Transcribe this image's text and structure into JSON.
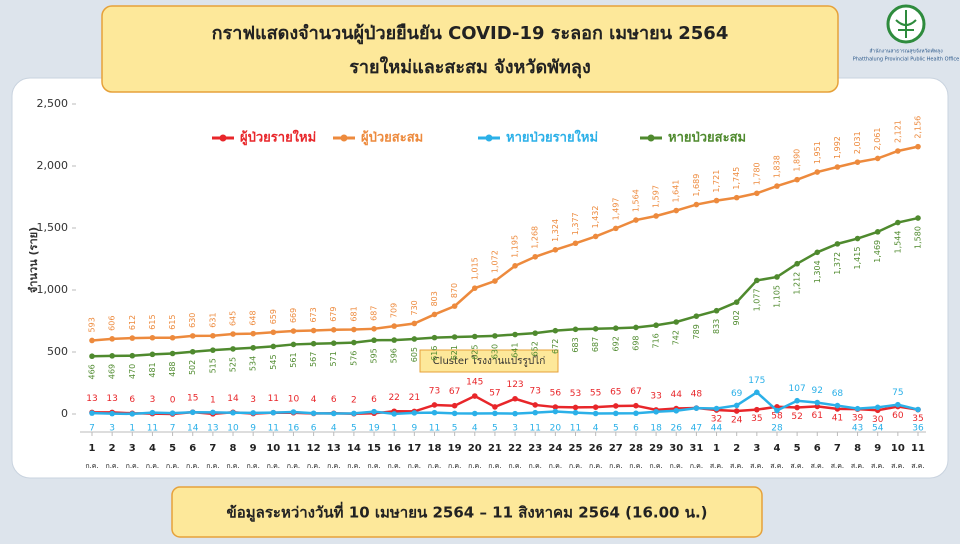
{
  "header": {
    "logo_text": "สำนักงานสาธารณสุขจังหวัดพัทลุง",
    "logo_subtext": "Phatthalung Provincial Public Health Office"
  },
  "footer": "ข้อมูลระหว่างวันที่ 10 เมษายน 2564 – 11 สิงหาคม 2564 (16.00 น.)",
  "chart_data": {
    "type": "line",
    "title": "กราฟแสดงจำนวนผู้ป่วยยืนยัน COVID-19 ระลอก เมษายน 2564",
    "subtitle": "รายใหม่และสะสม จังหวัดพัทลุง",
    "y_label": "จำนวน (ราย)",
    "annotation": "Cluster โรงงานแปรรูปไก่",
    "categories": [
      "1",
      "2",
      "3",
      "4",
      "5",
      "6",
      "7",
      "8",
      "9",
      "10",
      "11",
      "12",
      "13",
      "14",
      "15",
      "16",
      "17",
      "18",
      "19",
      "20",
      "21",
      "22",
      "23",
      "24",
      "25",
      "26",
      "27",
      "28",
      "29",
      "30",
      "31",
      "1",
      "2",
      "3",
      "4",
      "5",
      "6",
      "7",
      "8",
      "9",
      "10",
      "11"
    ],
    "x_sublabels": [
      "ก.ค.",
      "ก.ค.",
      "ก.ค.",
      "ก.ค.",
      "ก.ค.",
      "ก.ค.",
      "ก.ค.",
      "ก.ค.",
      "ก.ค.",
      "ก.ค.",
      "ก.ค.",
      "ก.ค.",
      "ก.ค.",
      "ก.ค.",
      "ก.ค.",
      "ก.ค.",
      "ก.ค.",
      "ก.ค.",
      "ก.ค.",
      "ก.ค.",
      "ก.ค.",
      "ก.ค.",
      "ก.ค.",
      "ก.ค.",
      "ก.ค.",
      "ก.ค.",
      "ก.ค.",
      "ก.ค.",
      "ก.ค.",
      "ก.ค.",
      "ก.ค.",
      "ส.ค.",
      "ส.ค.",
      "ส.ค.",
      "ส.ค.",
      "ส.ค.",
      "ส.ค.",
      "ส.ค.",
      "ส.ค.",
      "ส.ค.",
      "ส.ค.",
      "ส.ค."
    ],
    "ylim": [
      0,
      2500
    ],
    "yticks": [
      0,
      500,
      {
        "value": 1000,
        "label": "1,000"
      },
      {
        "value": 1500,
        "label": "1,500"
      },
      {
        "value": 2000,
        "label": "2,000"
      },
      {
        "value": 2500,
        "label": "2,500"
      }
    ],
    "series": [
      {
        "name": "ผู้ป่วยรายใหม่",
        "color": "#e8262a",
        "values": [
          13,
          13,
          6,
          3,
          0,
          15,
          1,
          14,
          3,
          11,
          10,
          4,
          6,
          2,
          6,
          22,
          21,
          73,
          67,
          145,
          57,
          123,
          73,
          56,
          53,
          55,
          65,
          67,
          33,
          44,
          48,
          32,
          24,
          35,
          58,
          52,
          61,
          41,
          39,
          30,
          60,
          35
        ]
      },
      {
        "name": "ผู้ป่วยสะสม",
        "color": "#ed8a3d",
        "values": [
          593,
          606,
          612,
          615,
          615,
          630,
          631,
          645,
          648,
          659,
          669,
          673,
          679,
          681,
          687,
          709,
          730,
          803,
          870,
          1015,
          1072,
          1195,
          1268,
          1324,
          1377,
          1432,
          1497,
          1564,
          1597,
          1641,
          1689,
          1721,
          1745,
          1780,
          1838,
          1890,
          1951,
          1992,
          2031,
          2061,
          2121,
          2156
        ],
        "value_labels": [
          "593",
          "606",
          "612",
          "615",
          "615",
          "630",
          "631",
          "645",
          "648",
          "659",
          "669",
          "673",
          "679",
          "681",
          "687",
          "709",
          "730",
          "803",
          "870",
          "1,015",
          "1,072",
          "1,195",
          "1,268",
          "1,324",
          "1,377",
          "1,432",
          "1,497",
          "1,564",
          "1,597",
          "1,641",
          "1,689",
          "1,721",
          "1,745",
          "1,780",
          "1,838",
          "1,890",
          "1,951",
          "1,992",
          "2,031",
          "2,061",
          "2,121",
          "2,156"
        ]
      },
      {
        "name": "หายป่วยรายใหม่",
        "color": "#2bb0e8",
        "values": [
          7,
          3,
          1,
          11,
          7,
          14,
          13,
          10,
          9,
          11,
          16,
          6,
          4,
          5,
          19,
          1,
          9,
          11,
          5,
          4,
          5,
          3,
          11,
          20,
          11,
          4,
          5,
          6,
          18,
          26,
          47,
          44,
          69,
          175,
          28,
          107,
          92,
          68,
          43,
          54,
          75,
          36
        ]
      },
      {
        "name": "หายป่วยสะสม",
        "color": "#4f8a2e",
        "values": [
          466,
          469,
          470,
          481,
          488,
          502,
          515,
          525,
          534,
          545,
          561,
          567,
          571,
          576,
          595,
          596,
          605,
          616,
          621,
          625,
          630,
          641,
          652,
          672,
          683,
          687,
          692,
          698,
          716,
          742,
          789,
          833,
          902,
          1077,
          1105,
          1212,
          1304,
          1372,
          1415,
          1469,
          1544,
          1580
        ],
        "value_labels": [
          "466",
          "469",
          "470",
          "481",
          "488",
          "502",
          "515",
          "525",
          "534",
          "545",
          "561",
          "567",
          "571",
          "576",
          "595",
          "596",
          "605",
          "616",
          "621",
          "625",
          "630",
          "641",
          "652",
          "672",
          "683",
          "687",
          "692",
          "698",
          "716",
          "742",
          "789",
          "833",
          "902",
          "1,077",
          "1,105",
          "1,212",
          "1,304",
          "1,372",
          "1,415",
          "1,469",
          "1,544",
          "1,580"
        ]
      }
    ]
  }
}
